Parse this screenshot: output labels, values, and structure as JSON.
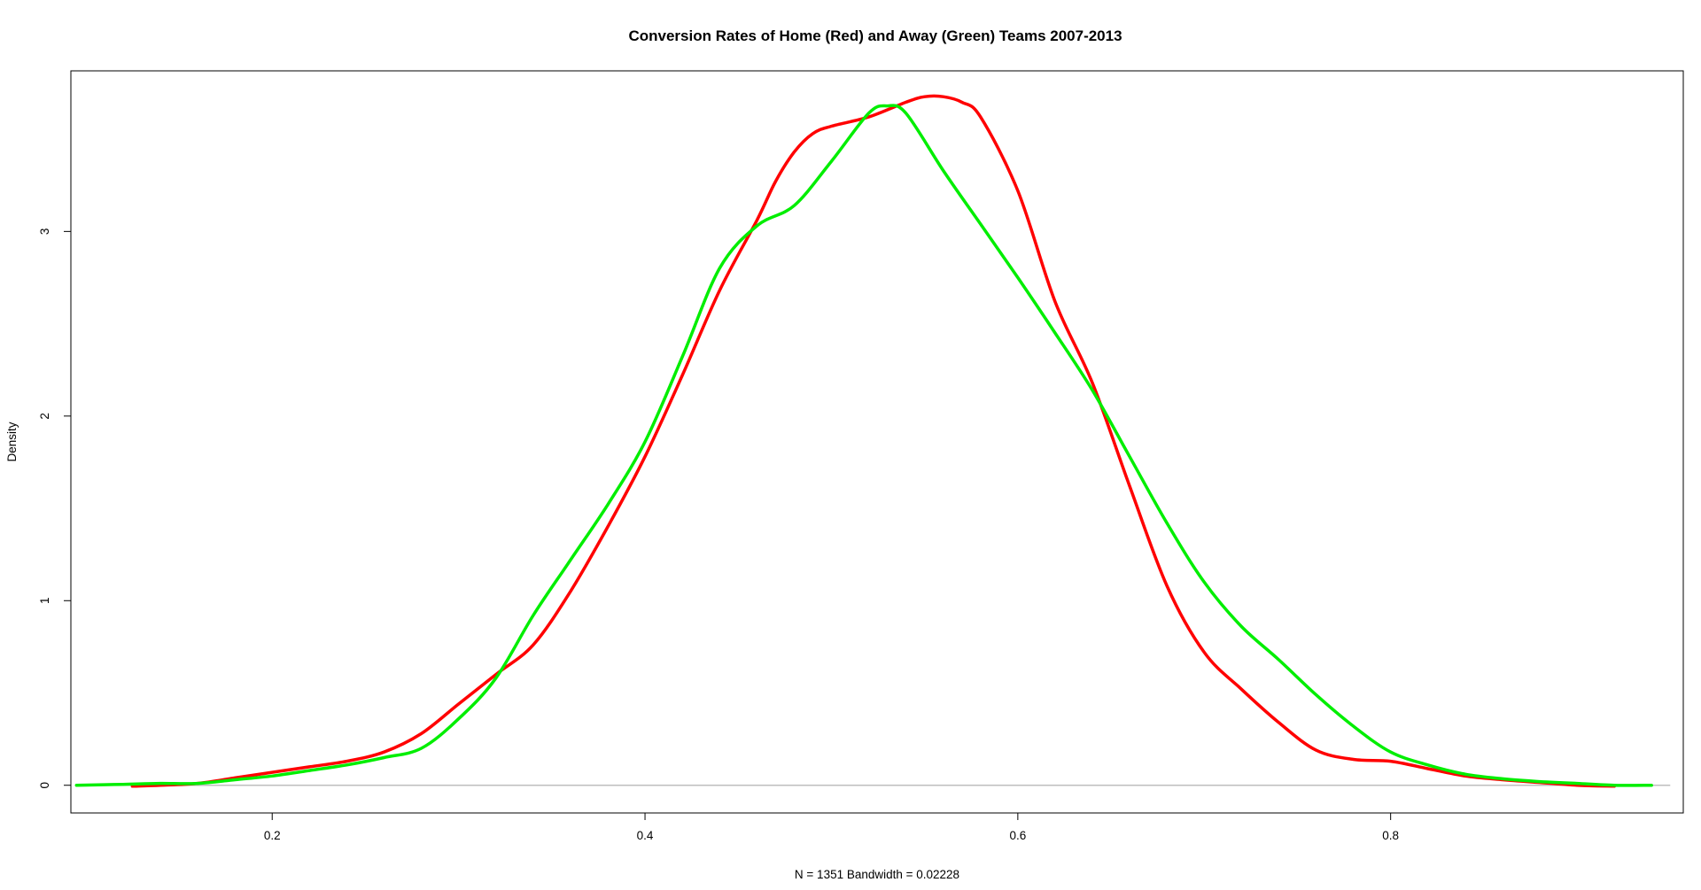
{
  "chart_data": {
    "type": "line",
    "title": "Conversion Rates of Home (Red) and Away (Green) Teams 2007-2013",
    "xlabel": "N = 1351   Bandwidth = 0.02228",
    "ylabel": "Density",
    "xlim": [
      0.092,
      0.957
    ],
    "ylim": [
      -0.15,
      3.87
    ],
    "x_ticks": [
      0.2,
      0.4,
      0.6,
      0.8
    ],
    "x_tick_labels": [
      "0.2",
      "0.4",
      "0.6",
      "0.8"
    ],
    "y_ticks": [
      0,
      1,
      2,
      3
    ],
    "y_tick_labels": [
      "0",
      "1",
      "2",
      "3"
    ],
    "grid": false,
    "baseline": 0,
    "series": [
      {
        "color": "#ff0000",
        "x": [
          0.125,
          0.14,
          0.16,
          0.18,
          0.2,
          0.22,
          0.24,
          0.26,
          0.28,
          0.3,
          0.32,
          0.34,
          0.36,
          0.38,
          0.4,
          0.42,
          0.44,
          0.46,
          0.47,
          0.48,
          0.49,
          0.5,
          0.52,
          0.54,
          0.55,
          0.56,
          0.57,
          0.58,
          0.6,
          0.62,
          0.64,
          0.66,
          0.68,
          0.7,
          0.72,
          0.74,
          0.76,
          0.78,
          0.8,
          0.82,
          0.84,
          0.86,
          0.88,
          0.9,
          0.92
        ],
        "y": [
          -0.005,
          0.0,
          0.01,
          0.04,
          0.07,
          0.1,
          0.13,
          0.18,
          0.28,
          0.44,
          0.6,
          0.76,
          1.05,
          1.4,
          1.78,
          2.22,
          2.68,
          3.06,
          3.27,
          3.43,
          3.53,
          3.57,
          3.62,
          3.7,
          3.73,
          3.73,
          3.7,
          3.62,
          3.22,
          2.62,
          2.18,
          1.62,
          1.08,
          0.72,
          0.52,
          0.34,
          0.19,
          0.14,
          0.13,
          0.09,
          0.05,
          0.03,
          0.015,
          0.0,
          -0.005
        ]
      },
      {
        "color": "#00ee00",
        "x": [
          0.095,
          0.12,
          0.14,
          0.16,
          0.18,
          0.2,
          0.22,
          0.24,
          0.26,
          0.28,
          0.3,
          0.32,
          0.34,
          0.36,
          0.38,
          0.4,
          0.42,
          0.44,
          0.46,
          0.48,
          0.5,
          0.52,
          0.53,
          0.54,
          0.56,
          0.58,
          0.6,
          0.62,
          0.64,
          0.66,
          0.68,
          0.7,
          0.72,
          0.74,
          0.76,
          0.78,
          0.8,
          0.82,
          0.84,
          0.86,
          0.88,
          0.9,
          0.92,
          0.94
        ],
        "y": [
          0.0,
          0.005,
          0.01,
          0.01,
          0.03,
          0.05,
          0.08,
          0.11,
          0.15,
          0.2,
          0.36,
          0.58,
          0.92,
          1.22,
          1.52,
          1.86,
          2.32,
          2.8,
          3.03,
          3.14,
          3.38,
          3.64,
          3.68,
          3.64,
          3.33,
          3.04,
          2.75,
          2.45,
          2.14,
          1.78,
          1.42,
          1.1,
          0.86,
          0.68,
          0.49,
          0.32,
          0.18,
          0.11,
          0.06,
          0.035,
          0.02,
          0.01,
          0.0,
          0.0
        ]
      }
    ]
  }
}
